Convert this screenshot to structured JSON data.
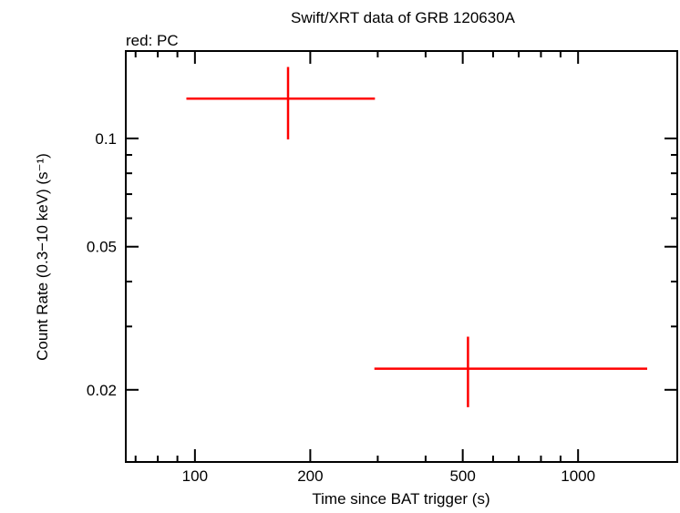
{
  "chart_data": {
    "type": "scatter",
    "title": "Swift/XRT data of GRB 120630A",
    "subtitle": "red: PC",
    "xlabel": "Time since BAT trigger (s)",
    "ylabel": "Count Rate (0.3−10 keV) (s⁻¹)",
    "xscale": "log",
    "yscale": "log",
    "xlim": [
      66,
      1815
    ],
    "ylim": [
      0.0126,
      0.175
    ],
    "xticks": [
      100,
      200,
      500,
      1000
    ],
    "xtick_labels": [
      "100",
      "200",
      "500",
      "1000"
    ],
    "yticks": [
      0.02,
      0.05,
      0.1
    ],
    "ytick_labels": [
      "0.02",
      "0.05",
      "0.1"
    ],
    "grid": false,
    "series": [
      {
        "color": "#ff0000",
        "points": [
          {
            "x": 175,
            "x_lo": 95,
            "x_hi": 295,
            "y": 0.129,
            "y_lo": 0.0994,
            "y_hi": 0.158
          },
          {
            "x": 516,
            "x_lo": 294,
            "x_hi": 1515,
            "y": 0.0229,
            "y_lo": 0.0179,
            "y_hi": 0.0281
          }
        ]
      }
    ]
  }
}
